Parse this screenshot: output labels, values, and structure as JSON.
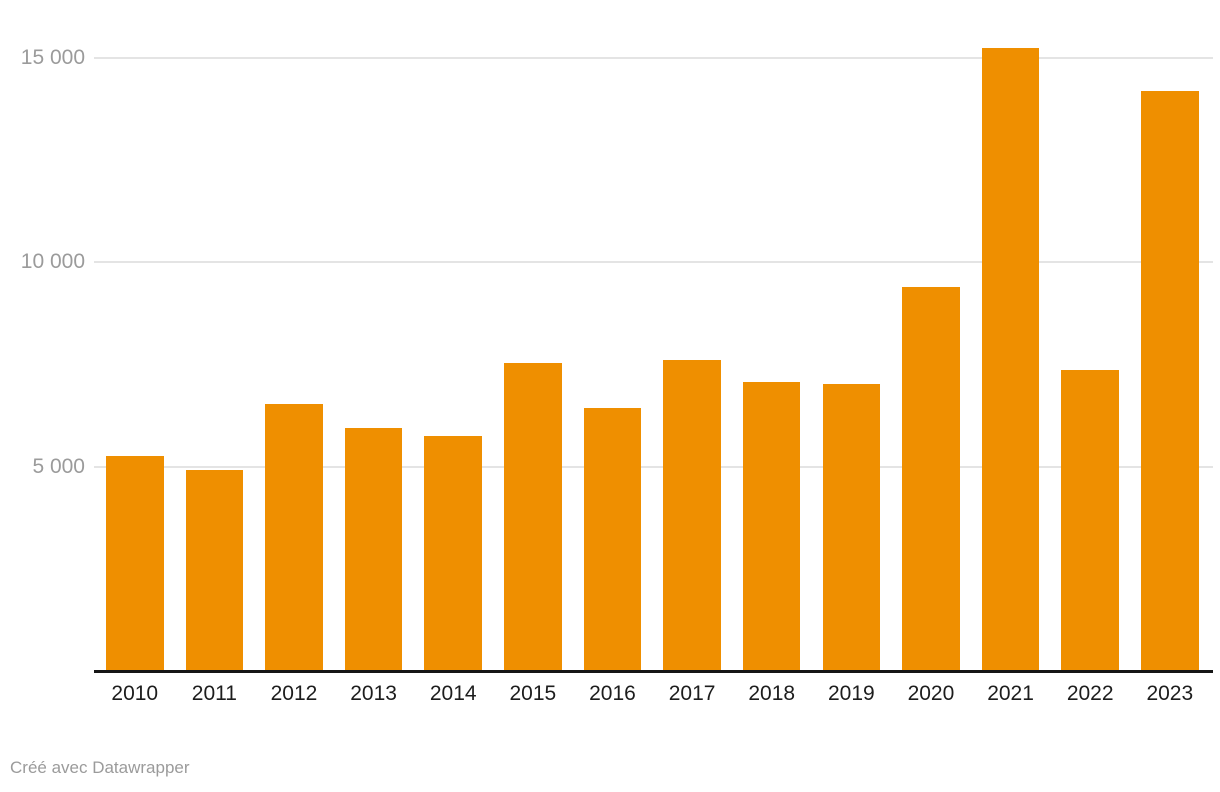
{
  "chart_data": {
    "type": "bar",
    "categories": [
      "2010",
      "2011",
      "2012",
      "2013",
      "2014",
      "2015",
      "2016",
      "2017",
      "2018",
      "2019",
      "2020",
      "2021",
      "2022",
      "2023"
    ],
    "values": [
      5280,
      4940,
      6540,
      5960,
      5760,
      7540,
      6440,
      7610,
      7070,
      7040,
      9400,
      15230,
      7380,
      14180
    ],
    "title": "",
    "xlabel": "",
    "ylabel": "",
    "ylim": [
      0,
      15500
    ],
    "yticks": [
      {
        "value": 5000,
        "label": "5 000"
      },
      {
        "value": 10000,
        "label": "10 000"
      },
      {
        "value": 15000,
        "label": "15 000"
      }
    ],
    "grid": true,
    "legend": "none",
    "bar_color": "#EF8F00"
  },
  "colors": {
    "bar": "#EF8F00",
    "gridline": "#e4e4e4",
    "axis_line": "#161616",
    "y_tick_label": "#9b9b9b",
    "x_tick_label": "#1d1d1d",
    "background": "#ffffff"
  },
  "footer": {
    "credit": "Créé avec Datawrapper"
  }
}
